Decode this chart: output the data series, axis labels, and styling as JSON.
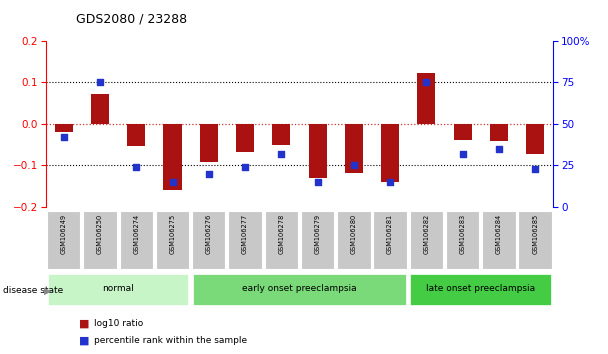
{
  "title": "GDS2080 / 23288",
  "samples": [
    "GSM106249",
    "GSM106250",
    "GSM106274",
    "GSM106275",
    "GSM106276",
    "GSM106277",
    "GSM106278",
    "GSM106279",
    "GSM106280",
    "GSM106281",
    "GSM106282",
    "GSM106283",
    "GSM106284",
    "GSM106285"
  ],
  "log10_ratio": [
    -0.02,
    0.073,
    -0.052,
    -0.16,
    -0.092,
    -0.068,
    -0.05,
    -0.13,
    -0.118,
    -0.14,
    0.122,
    -0.038,
    -0.042,
    -0.072
  ],
  "percentile_rank": [
    42,
    75,
    24,
    15,
    20,
    24,
    32,
    15,
    25,
    15,
    75,
    32,
    35,
    23
  ],
  "groups": [
    {
      "label": "normal",
      "start": 0,
      "end": 4,
      "color": "#c8f5c8"
    },
    {
      "label": "early onset preeclampsia",
      "start": 4,
      "end": 10,
      "color": "#7ada7a"
    },
    {
      "label": "late onset preeclampsia",
      "start": 10,
      "end": 14,
      "color": "#44cc44"
    }
  ],
  "bar_color": "#aa1111",
  "dot_color": "#2233cc",
  "ylim": [
    -0.2,
    0.2
  ],
  "dotted_lines_black": [
    -0.1,
    0.1
  ],
  "zero_line_color": "#cc3333",
  "background_color": "#ffffff",
  "label_box_color": "#c8c8c8",
  "legend_items": [
    {
      "label": "log10 ratio",
      "color": "#aa1111"
    },
    {
      "label": "percentile rank within the sample",
      "color": "#2233cc"
    }
  ]
}
